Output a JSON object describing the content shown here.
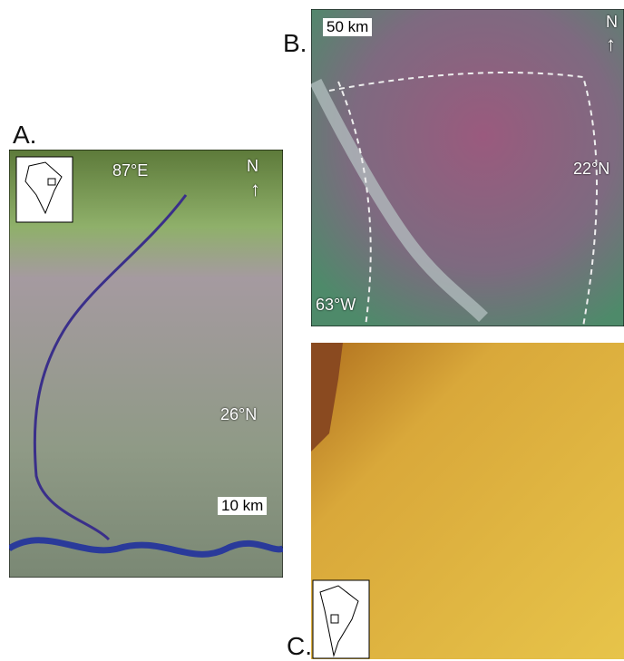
{
  "panels": [
    {
      "label": "A.",
      "labels": {
        "longitude": "87°E",
        "latitude": "26°N",
        "north": "N",
        "scale": "10 km"
      }
    },
    {
      "label": "B.",
      "labels": {
        "longitude": "63°W",
        "latitude": "22°N",
        "north": "N",
        "scale": "50 km"
      }
    },
    {
      "label": "C."
    }
  ]
}
